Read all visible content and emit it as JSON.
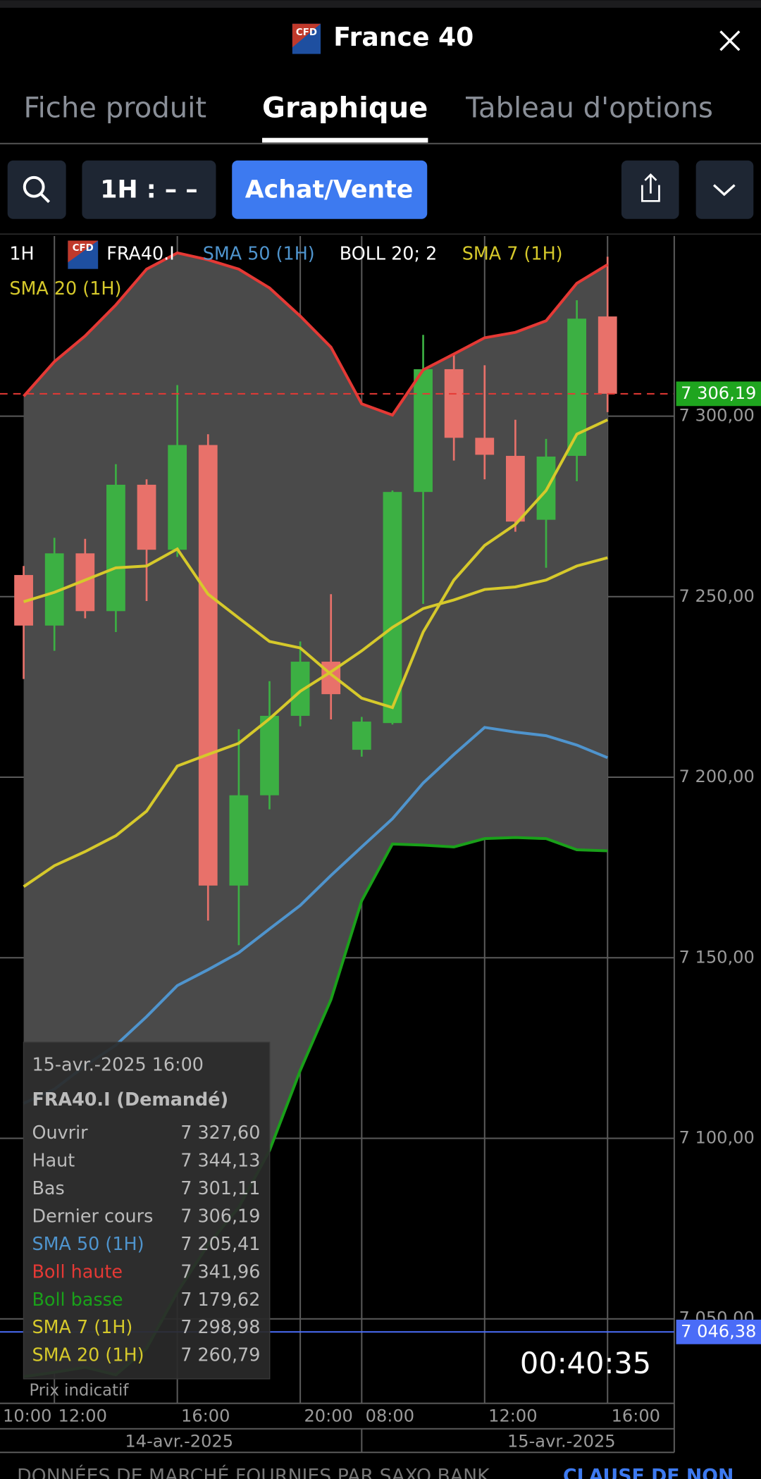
{
  "header": {
    "title": "France 40",
    "icon_label": "CFD"
  },
  "tabs": [
    "Fiche produit",
    "Graphique",
    "Tableau d'options"
  ],
  "active_tab": 1,
  "toolbar": {
    "interval": "1H : – –",
    "trade_button": "Achat/Vente"
  },
  "chart": {
    "type": "candlestick",
    "interval": "1H",
    "instrument": "FRA40.I",
    "x": [
      0,
      1,
      2,
      3,
      4,
      5,
      6,
      7,
      8,
      9,
      10,
      11,
      12,
      13,
      14,
      15,
      16,
      17,
      18,
      19
    ],
    "xlim": [
      -0.77,
      21.17
    ],
    "xticks": [
      {
        "value": -1,
        "label": "10:00"
      },
      {
        "value": 1,
        "label": "12:00"
      },
      {
        "value": 5,
        "label": "16:00"
      },
      {
        "value": 9,
        "label": "20:00"
      },
      {
        "value": 11,
        "label": "08:00"
      },
      {
        "value": 15,
        "label": "12:00"
      },
      {
        "value": 19,
        "label": "16:00"
      }
    ],
    "date_labels": [
      {
        "value": 5.06,
        "label": "14-avr.-2025"
      },
      {
        "value": 17.5,
        "label": "15-avr.-2025"
      }
    ],
    "day_separators": [
      11
    ],
    "ylim": [
      7026.6,
      7349.9
    ],
    "yticks": [
      {
        "value": 7050,
        "label": "7 050,00"
      },
      {
        "value": 7100,
        "label": "7 100,00"
      },
      {
        "value": 7150,
        "label": "7 150,00"
      },
      {
        "value": 7200,
        "label": "7 200,00"
      },
      {
        "value": 7250,
        "label": "7 250,00"
      },
      {
        "value": 7300,
        "label": "7 300,00"
      }
    ],
    "grid": true,
    "candles": {
      "up_color": "#3cb043",
      "down_color": "#e8716a",
      "open": [
        7256,
        7242,
        7262,
        7246,
        7281,
        7263,
        7292,
        7170,
        7195,
        7217,
        7232,
        7207.6,
        7215,
        7279,
        7313,
        7294,
        7289,
        7271.3,
        7289,
        7327.6
      ],
      "high": [
        7258.5,
        7266.3,
        7266,
        7286.7,
        7282.5,
        7308.6,
        7295,
        7213.3,
        7226.6,
        7237.6,
        7250.7,
        7216.7,
        7279.4,
        7322.5,
        7317.2,
        7314.1,
        7299,
        7293.7,
        7332.1,
        7344.13
      ],
      "low": [
        7227.2,
        7235,
        7244,
        7240.2,
        7248.8,
        7261,
        7160.3,
        7153.5,
        7191.1,
        7214.1,
        7216,
        7205.7,
        7214.6,
        7248,
        7287.7,
        7282.5,
        7268,
        7258,
        7282,
        7301.11
      ],
      "close": [
        7242,
        7262,
        7246,
        7281,
        7263,
        7292,
        7170,
        7195,
        7217,
        7232,
        7223,
        7215.4,
        7279,
        7313,
        7294,
        7289.3,
        7270.8,
        7288.8,
        7327,
        7306.19
      ]
    },
    "bollinger": {
      "name": "BOLL 20; 2",
      "fill": "#4a4a4a",
      "upper": {
        "color": "#e53935",
        "values": [
          7305.5,
          7315.1,
          7322.2,
          7330.8,
          7340.7,
          7345.2,
          7343.3,
          7340.7,
          7335.5,
          7327.7,
          7319.1,
          7303.4,
          7300.3,
          7312.8,
          7317.2,
          7321.7,
          7323.2,
          7326.4,
          7336.8,
          7341.96
        ]
      },
      "lower": {
        "color": "#1aa01a",
        "values": [
          7034.0,
          7035.2,
          7036.6,
          7034.5,
          7041.8,
          7057.4,
          7070.5,
          7080.9,
          7096.6,
          7118.8,
          7138.4,
          7165.8,
          7181.5,
          7181.2,
          7180.7,
          7183.0,
          7183.3,
          7183.0,
          7179.9,
          7179.62
        ]
      }
    },
    "series": [
      {
        "name": "SMA 50 (1H)",
        "color": "#4f94cd",
        "values": [
          7109.7,
          7113.6,
          7120.1,
          7125.8,
          7133.7,
          7142.3,
          7146.7,
          7151.4,
          7158.0,
          7164.5,
          7172.8,
          7180.7,
          7188.5,
          7198.4,
          7206.3,
          7213.8,
          7212.5,
          7211.5,
          7208.9,
          7205.41
        ]
      },
      {
        "name": "SMA 7 (1H)",
        "color": "#d6c92b",
        "values": [
          7248.6,
          7251.2,
          7254.6,
          7258.0,
          7258.5,
          7263.2,
          7250.7,
          7244.1,
          7237.6,
          7235.8,
          7228.5,
          7221.9,
          7219.3,
          7240.2,
          7254.6,
          7264.2,
          7270.0,
          7279.4,
          7295.0,
          7298.98
        ]
      },
      {
        "name": "SMA 20 (1H)",
        "color": "#d6c92b",
        "values": [
          7169.7,
          7175.5,
          7179.4,
          7183.8,
          7190.6,
          7203.1,
          7206.3,
          7209.4,
          7216.2,
          7223.8,
          7229.2,
          7235.0,
          7241.5,
          7246.7,
          7249.1,
          7252.0,
          7252.7,
          7254.6,
          7258.5,
          7260.79
        ]
      }
    ],
    "last_price": {
      "value": 7306.19,
      "label": "7 306,19",
      "color": "#e53935",
      "label_color": "#1fa51f"
    },
    "alert_line": {
      "value": 7046.38,
      "label": "7 046,38",
      "color": "#4a6cf7"
    },
    "countdown": "00:40:35",
    "tooltip": {
      "date": "15-avr.-2025 16:00",
      "title": "FRA40.I (Demandé)",
      "rows": [
        {
          "label": "Ouvrir",
          "value": "7 327,60",
          "color": "#bbbbbb"
        },
        {
          "label": "Haut",
          "value": "7 344,13",
          "color": "#bbbbbb"
        },
        {
          "label": "Bas",
          "value": "7 301,11",
          "color": "#bbbbbb"
        },
        {
          "label": "Dernier cours",
          "value": "7 306,19",
          "color": "#bbbbbb"
        },
        {
          "label": "SMA 50 (1H)",
          "value": "7 205,41",
          "color": "#4f94cd"
        },
        {
          "label": "Boll haute",
          "value": "7 341,96",
          "color": "#e53935"
        },
        {
          "label": "Boll basse",
          "value": "7 179,62",
          "color": "#1aa01a"
        },
        {
          "label": "SMA 7 (1H)",
          "value": "7 298,98",
          "color": "#d6c92b"
        },
        {
          "label": "SMA 20 (1H)",
          "value": "7 260,79",
          "color": "#d6c92b"
        }
      ],
      "note": "Prix indicatif"
    }
  },
  "footer": {
    "text": "DONNÉES DE MARCHÉ FOURNIES PAR SAXO BANK",
    "link": "CLAUSE DE NON"
  }
}
